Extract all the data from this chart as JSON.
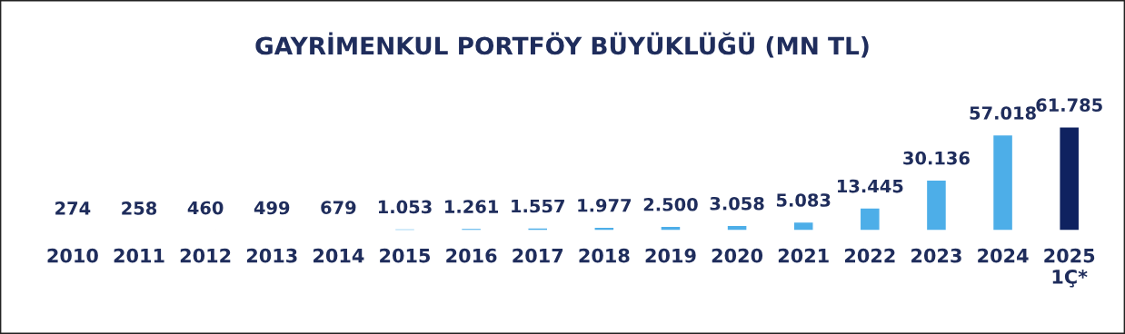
{
  "chart_data": {
    "type": "bar",
    "title": "GAYRİMENKUL PORTFÖY BÜYÜKLÜĞÜ (MN TL)",
    "categories": [
      "2010",
      "2011",
      "2012",
      "2013",
      "2014",
      "2015",
      "2016",
      "2017",
      "2018",
      "2019",
      "2020",
      "2021",
      "2022",
      "2023",
      "2024",
      "2025\n1Ç*"
    ],
    "values": [
      274,
      258,
      460,
      499,
      679,
      1053,
      1261,
      1557,
      1977,
      2500,
      3058,
      5083,
      13445,
      30136,
      57018,
      61785
    ],
    "colors": [
      "#9e9e9e",
      "#9e9e9e",
      "#9e9e9e",
      "#9e9e9e",
      "#4daee8",
      "#4daee8",
      "#4daee8",
      "#4daee8",
      "#4daee8",
      "#4daee8",
      "#4daee8",
      "#4daee8",
      "#4daee8",
      "#4daee8",
      "#4daee8",
      "#0f2260"
    ],
    "value_labels": [
      "274",
      "258",
      "460",
      "499",
      "679",
      "1.053",
      "1.261",
      "1.557",
      "1.977",
      "2.500",
      "3.058",
      "5.083",
      "13.445",
      "30.136",
      "57.018",
      "61.785"
    ],
    "grid": false,
    "legend": false
  }
}
